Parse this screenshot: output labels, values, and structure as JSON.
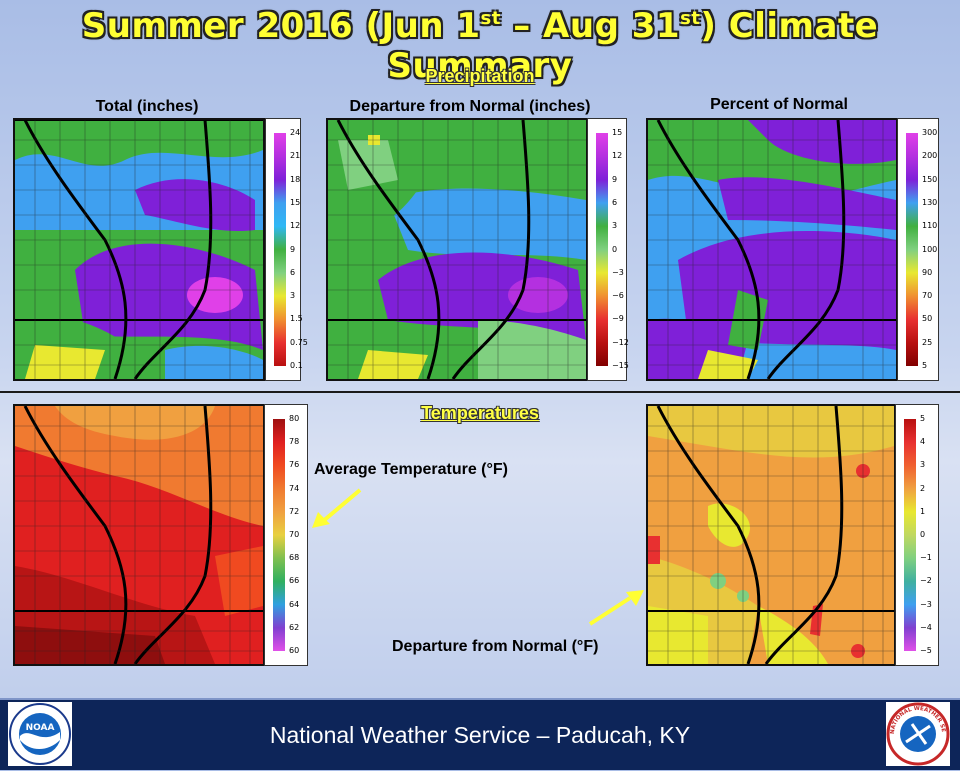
{
  "title": {
    "prefix": "Summer 2016 (Jun 1",
    "sup1": "st",
    "middle": " – Aug 31",
    "sup2": "st",
    "suffix": ") Climate Summary"
  },
  "sections": {
    "precipitation": "Precipitation",
    "temperatures": "Temperatures"
  },
  "panels": {
    "total": {
      "label": "Total (inches)",
      "legend": [
        "24",
        "21",
        "18",
        "15",
        "12",
        "9",
        "6",
        "3",
        "1.5",
        "0.75",
        "0.1"
      ],
      "colors": [
        "#e040e8",
        "#b430e0",
        "#7f20d8",
        "#3fa0f0",
        "#2fb8f5",
        "#40b040",
        "#80d080",
        "#e8e830",
        "#f09030",
        "#e83030",
        "#b81010"
      ]
    },
    "departure_precip": {
      "label": "Departure from Normal (inches)",
      "legend": [
        "15",
        "12",
        "9",
        "6",
        "3",
        "0",
        "−3",
        "−6",
        "−9",
        "−12",
        "−15"
      ],
      "colors": [
        "#e040e8",
        "#b430e0",
        "#7f20d8",
        "#3fa0f0",
        "#40b040",
        "#80d080",
        "#e8e830",
        "#f09030",
        "#e83030",
        "#b81010",
        "#800000"
      ]
    },
    "percent": {
      "label": "Percent of Normal",
      "legend": [
        "300",
        "200",
        "150",
        "130",
        "110",
        "100",
        "90",
        "70",
        "50",
        "25",
        "5"
      ],
      "colors": [
        "#e040e8",
        "#b430e0",
        "#7f20d8",
        "#3fa0f0",
        "#40b040",
        "#80d080",
        "#e8e830",
        "#f09030",
        "#e83030",
        "#b81010",
        "#800000"
      ]
    },
    "avg_temp": {
      "legend": [
        "80",
        "78",
        "76",
        "74",
        "72",
        "70",
        "68",
        "66",
        "64",
        "62",
        "60"
      ],
      "colors": [
        "#9e1010",
        "#e02020",
        "#f04a20",
        "#f07a30",
        "#f0a040",
        "#e8d040",
        "#80c050",
        "#30b060",
        "#30a0e0",
        "#8040d0",
        "#e050e8"
      ]
    },
    "temp_departure": {
      "legend": [
        "5",
        "4",
        "3",
        "2",
        "1",
        "0",
        "−1",
        "−2",
        "−3",
        "−4",
        "−5"
      ],
      "colors": [
        "#b81010",
        "#e83030",
        "#f06030",
        "#f0a040",
        "#e8e830",
        "#c0d860",
        "#80d080",
        "#40b0a0",
        "#3fa0f0",
        "#8040d0",
        "#e050e8"
      ]
    }
  },
  "callouts": {
    "avg_temp": "Average Temperature (°F)",
    "temp_departure": "Departure from Normal (°F)"
  },
  "footer": {
    "text": "National Weather Service – Paducah, KY"
  },
  "logos": {
    "left": "NOAA",
    "right": "NATIONAL WEATHER SERVICE"
  },
  "colors": {
    "title": "#ffff33",
    "footer_bg": "#0d2559",
    "arrow": "#ffff33"
  }
}
